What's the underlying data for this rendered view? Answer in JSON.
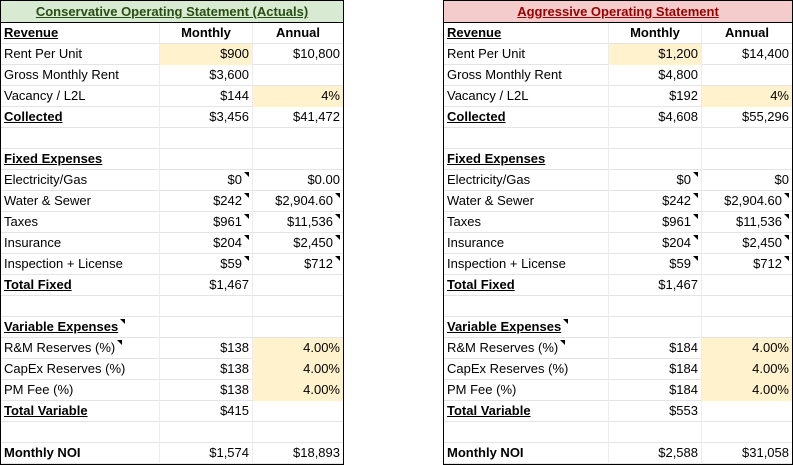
{
  "colors": {
    "highlight": "#fff2cc",
    "gridline": "#e4e4e4",
    "table_border": "#000000"
  },
  "statements": [
    {
      "id": "conservative",
      "title": "Conservative Operating Statement (Actuals)",
      "theme": {
        "header_bg": "#d9ead3",
        "header_text": "#274e13"
      },
      "rows": [
        {
          "row_type": "header",
          "label": "Revenue",
          "monthly": "Monthly",
          "annual": "Annual",
          "label_bold": true,
          "label_underline": true
        },
        {
          "label": "Rent Per Unit",
          "monthly": "$900",
          "annual": "$10,800",
          "highlight_monthly": true
        },
        {
          "label": "Gross Monthly Rent",
          "monthly": "$3,600",
          "annual": ""
        },
        {
          "label": "Vacancy / L2L",
          "monthly": "$144",
          "annual": "4%",
          "highlight_annual": true
        },
        {
          "label": "Collected",
          "monthly": "$3,456",
          "annual": "$41,472",
          "label_bold": true,
          "label_underline": true
        },
        {
          "row_type": "blank"
        },
        {
          "label": "Fixed Expenses",
          "label_bold": true,
          "label_underline": true
        },
        {
          "label": "Electricity/Gas",
          "monthly": "$0",
          "annual": "$0.00",
          "note_monthly": true
        },
        {
          "label": "Water & Sewer",
          "monthly": "$242",
          "annual": "$2,904.60",
          "note_monthly": true,
          "note_annual": true
        },
        {
          "label": "Taxes",
          "monthly": "$961",
          "annual": "$11,536",
          "note_monthly": true,
          "note_annual": true
        },
        {
          "label": "Insurance",
          "monthly": "$204",
          "annual": "$2,450",
          "note_monthly": true,
          "note_annual": true
        },
        {
          "label": "Inspection + License",
          "monthly": "$59",
          "annual": "$712",
          "note_monthly": true,
          "note_annual": true
        },
        {
          "label": "Total Fixed",
          "monthly": "$1,467",
          "label_bold": true,
          "label_underline": true
        },
        {
          "row_type": "blank"
        },
        {
          "label": "Variable Expenses",
          "label_bold": true,
          "label_underline": true,
          "note_label": true
        },
        {
          "label": "R&M Reserves (%)",
          "monthly": "$138",
          "annual": "4.00%",
          "highlight_annual": true,
          "note_label": true
        },
        {
          "label": "CapEx Reserves (%)",
          "monthly": "$138",
          "annual": "4.00%",
          "highlight_annual": true
        },
        {
          "label": "PM Fee (%)",
          "monthly": "$138",
          "annual": "4.00%",
          "highlight_annual": true
        },
        {
          "label": "Total Variable",
          "monthly": "$415",
          "label_bold": true,
          "label_underline": true
        },
        {
          "row_type": "blank"
        },
        {
          "label": "Monthly NOI",
          "monthly": "$1,574",
          "annual": "$18,893",
          "label_bold": true
        }
      ]
    },
    {
      "id": "aggressive",
      "title": "Aggressive Operating Statement",
      "theme": {
        "header_bg": "#f4cccc",
        "header_text": "#990000"
      },
      "rows": [
        {
          "row_type": "header",
          "label": "Revenue",
          "monthly": "Monthly",
          "annual": "Annual",
          "label_bold": true,
          "label_underline": true
        },
        {
          "label": "Rent Per Unit",
          "monthly": "$1,200",
          "annual": "$14,400",
          "highlight_monthly": true
        },
        {
          "label": "Gross Monthly Rent",
          "monthly": "$4,800",
          "annual": ""
        },
        {
          "label": "Vacancy / L2L",
          "monthly": "$192",
          "annual": "4%",
          "highlight_annual": true
        },
        {
          "label": "Collected",
          "monthly": "$4,608",
          "annual": "$55,296",
          "label_bold": true,
          "label_underline": true
        },
        {
          "row_type": "blank"
        },
        {
          "label": "Fixed Expenses",
          "label_bold": true,
          "label_underline": true
        },
        {
          "label": "Electricity/Gas",
          "monthly": "$0",
          "annual": "$0",
          "note_monthly": true
        },
        {
          "label": "Water & Sewer",
          "monthly": "$242",
          "annual": "$2,904.60",
          "note_monthly": true,
          "note_annual": true
        },
        {
          "label": "Taxes",
          "monthly": "$961",
          "annual": "$11,536",
          "note_monthly": true,
          "note_annual": true
        },
        {
          "label": "Insurance",
          "monthly": "$204",
          "annual": "$2,450",
          "note_monthly": true,
          "note_annual": true
        },
        {
          "label": "Inspection + License",
          "monthly": "$59",
          "annual": "$712",
          "note_monthly": true,
          "note_annual": true
        },
        {
          "label": "Total Fixed",
          "monthly": "$1,467",
          "label_bold": true,
          "label_underline": true
        },
        {
          "row_type": "blank"
        },
        {
          "label": "Variable Expenses",
          "label_bold": true,
          "label_underline": true,
          "note_label": true
        },
        {
          "label": "R&M Reserves (%)",
          "monthly": "$184",
          "annual": "4.00%",
          "highlight_annual": true,
          "note_label": true
        },
        {
          "label": "CapEx Reserves (%)",
          "monthly": "$184",
          "annual": "4.00%",
          "highlight_annual": true
        },
        {
          "label": "PM Fee (%)",
          "monthly": "$184",
          "annual": "4.00%",
          "highlight_annual": true
        },
        {
          "label": "Total Variable",
          "monthly": "$553",
          "label_bold": true,
          "label_underline": true
        },
        {
          "row_type": "blank"
        },
        {
          "label": "Monthly NOI",
          "monthly": "$2,588",
          "annual": "$31,058",
          "label_bold": true
        }
      ]
    }
  ]
}
